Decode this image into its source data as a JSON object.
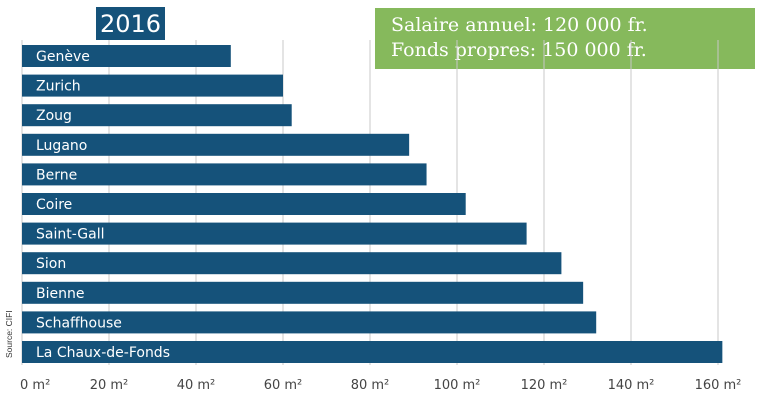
{
  "badge": {
    "year": "2016"
  },
  "info": {
    "line1": "Salaire annuel: 120 000 fr.",
    "line2": "Fonds propres: 150 000 fr."
  },
  "source": "Source: CIFI",
  "colors": {
    "bar": "#15527a",
    "badge": "#15527a",
    "info_box": "#86b95c",
    "text": "#ffffff"
  },
  "chart_data": {
    "type": "bar",
    "orientation": "horizontal",
    "categories": [
      "Genève",
      "Zurich",
      "Zoug",
      "Lugano",
      "Berne",
      "Coire",
      "Saint-Gall",
      "Sion",
      "Bienne",
      "Schaffhouse",
      "La Chaux-de-Fonds"
    ],
    "values": [
      48,
      60,
      62,
      89,
      93,
      102,
      116,
      124,
      129,
      132,
      161
    ],
    "unit": "m²",
    "xticks": [
      "0 m²",
      "20 m²",
      "40 m²",
      "60 m²",
      "80 m²",
      "100 m²",
      "120 m²",
      "140 m²",
      "160 m²"
    ],
    "xlim": [
      0,
      165
    ],
    "grid": true,
    "title": "",
    "xlabel": "",
    "ylabel": ""
  }
}
